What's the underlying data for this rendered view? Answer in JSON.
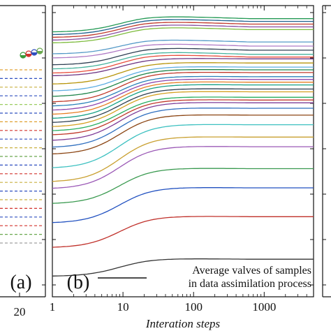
{
  "chart_data": [
    {
      "panel": "(a)",
      "type": "scatter",
      "xtick_labels": [
        "20"
      ],
      "markers": [
        {
          "color": "#3a9a3a"
        },
        {
          "color": "#d2322d"
        },
        {
          "color": "#2f4fbf"
        },
        {
          "color": "#6aa84f"
        }
      ],
      "dashed_level_colors": [
        "#e0a030",
        "#2f4fbf",
        "#c9b040",
        "#2f4fbf",
        "#9acd60",
        "#2f4fbf",
        "#e0a030",
        "#d2322d",
        "#2f4fbf",
        "#c9b040",
        "#6aa84f",
        "#2f4fbf",
        "#d2322d",
        "#c9b040",
        "#2f4fbf",
        "#c9b040",
        "#d2322d",
        "#2f4fbf",
        "#d2322d",
        "#6aa84f",
        "#a0a0a0"
      ],
      "label_text": "(a)"
    },
    {
      "panel": "(b)",
      "type": "line",
      "xscale": "log",
      "xlim": [
        1,
        5000
      ],
      "ylim": [
        0,
        1
      ],
      "xticks": [
        1,
        10,
        100,
        1000
      ],
      "xtick_labels": [
        "1",
        "10",
        "100",
        "1000"
      ],
      "xlabel": "Interation steps",
      "label_text": "(b)",
      "legend": "Average valves of samples in data assimilation process",
      "legend_lines": [
        "Average valves of samples",
        "in data assimilation process"
      ],
      "grid": false,
      "series": [
        {
          "color": "#333333",
          "values": [
            0.045,
            0.11
          ]
        },
        {
          "color": "#c0302a",
          "values": [
            0.15,
            0.265
          ]
        },
        {
          "color": "#2050c0",
          "values": [
            0.24,
            0.37
          ]
        },
        {
          "color": "#3a9a50",
          "values": [
            0.31,
            0.44
          ]
        },
        {
          "color": "#9b59b6",
          "values": [
            0.365,
            0.52
          ]
        },
        {
          "color": "#c9a030",
          "values": [
            0.39,
            0.555
          ]
        },
        {
          "color": "#3cc0c0",
          "values": [
            0.44,
            0.6
          ]
        },
        {
          "color": "#8b4513",
          "values": [
            0.49,
            0.635
          ]
        },
        {
          "color": "#2f6fbf",
          "values": [
            0.515,
            0.66
          ]
        },
        {
          "color": "#7d3c98",
          "values": [
            0.54,
            0.68
          ]
        },
        {
          "color": "#c0392b",
          "values": [
            0.56,
            0.69
          ]
        },
        {
          "color": "#27ae60",
          "values": [
            0.575,
            0.7
          ]
        },
        {
          "color": "#d4a020",
          "values": [
            0.59,
            0.72
          ]
        },
        {
          "color": "#2c3e50",
          "values": [
            0.605,
            0.73
          ]
        },
        {
          "color": "#16a085",
          "values": [
            0.62,
            0.745
          ]
        },
        {
          "color": "#e67e22",
          "values": [
            0.635,
            0.755
          ]
        },
        {
          "color": "#8e44ad",
          "values": [
            0.65,
            0.765
          ]
        },
        {
          "color": "#2980b9",
          "values": [
            0.665,
            0.775
          ]
        },
        {
          "color": "#c0392b",
          "values": [
            0.68,
            0.79
          ]
        },
        {
          "color": "#1e8449",
          "values": [
            0.7,
            0.8
          ]
        },
        {
          "color": "#5dade2",
          "values": [
            0.72,
            0.81
          ]
        },
        {
          "color": "#b7950b",
          "values": [
            0.745,
            0.825
          ]
        },
        {
          "color": "#6c3483",
          "values": [
            0.775,
            0.84
          ]
        },
        {
          "color": "#e74c3c",
          "values": [
            0.785,
            0.855
          ]
        },
        {
          "color": "#45b39d",
          "values": [
            0.8,
            0.865
          ]
        },
        {
          "color": "#2e4053",
          "values": [
            0.815,
            0.88
          ]
        },
        {
          "color": "#af7ac5",
          "values": [
            0.84,
            0.895
          ]
        },
        {
          "color": "#5499c7",
          "values": [
            0.855,
            0.91
          ]
        },
        {
          "color": "#7dbb3c",
          "values": [
            0.895,
            0.955
          ]
        },
        {
          "color": "#884ea0",
          "values": [
            0.905,
            0.965
          ]
        },
        {
          "color": "#c0392b",
          "values": [
            0.915,
            0.975
          ]
        },
        {
          "color": "#1f618d",
          "values": [
            0.925,
            0.985
          ]
        },
        {
          "color": "#229954",
          "values": [
            0.935,
            0.995
          ]
        }
      ]
    }
  ]
}
